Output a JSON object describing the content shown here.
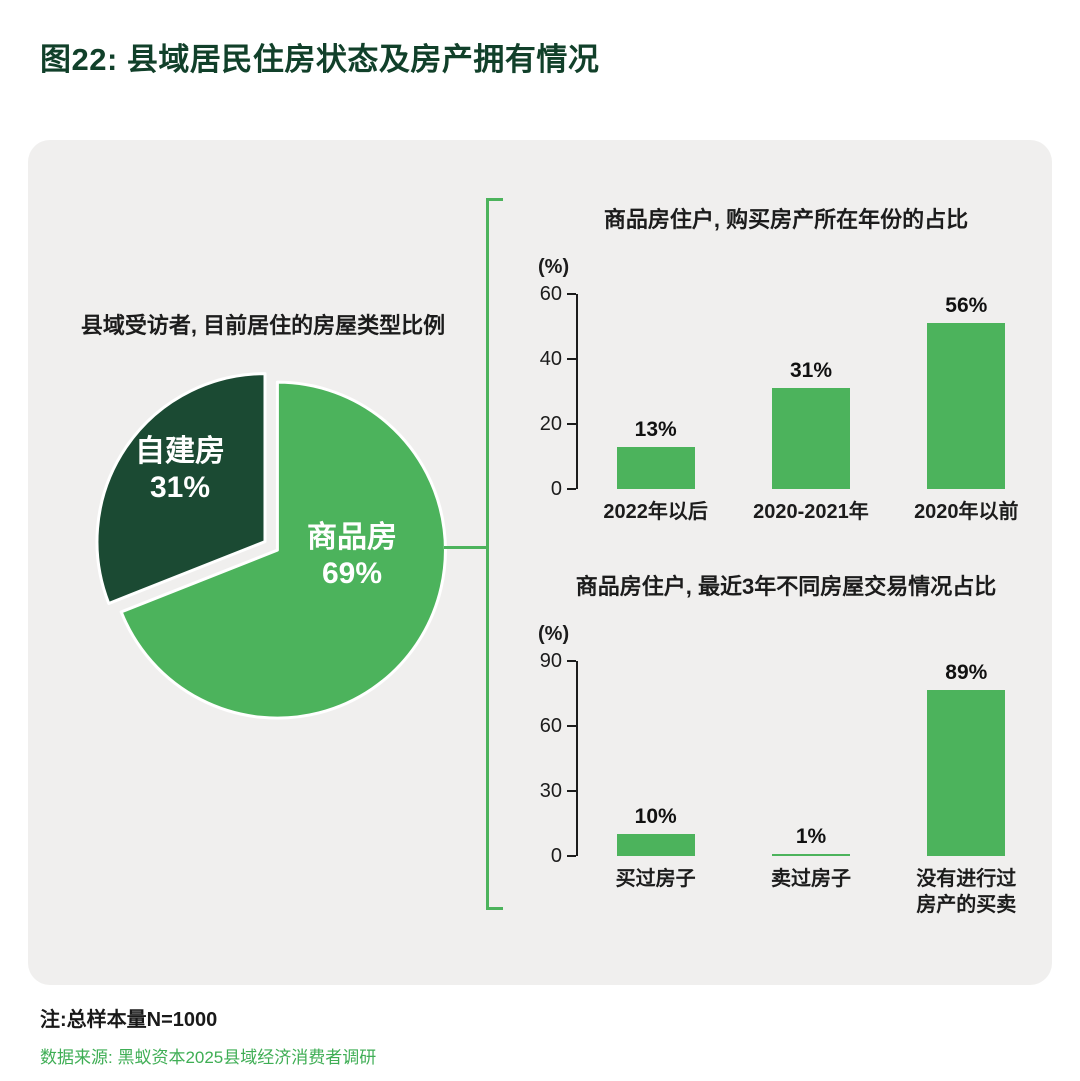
{
  "page": {
    "title": "图22: 县域居民住房状态及房产拥有情况",
    "note": "注:总样本量N=1000",
    "source": "数据来源: 黑蚁资本2025县域经济消费者调研"
  },
  "colors": {
    "title_green": "#11402a",
    "panel_bg": "#f0efee",
    "bar_green": "#4cb35c",
    "pie_dark_green": "#1b4a33",
    "pie_light_green": "#4cb35c",
    "bracket_green": "#4cb35c",
    "source_green": "#3fae55",
    "text_dark": "#1c1c1c"
  },
  "chart_data": [
    {
      "type": "pie",
      "title": "县域受访者, 目前居住的房屋类型比例",
      "slices": [
        {
          "label": "商品房",
          "pct_label": "69%",
          "value": 69,
          "color": "#4cb35c"
        },
        {
          "label": "自建房",
          "pct_label": "31%",
          "value": 31,
          "color": "#1b4a33"
        }
      ],
      "legend_position": "inside"
    },
    {
      "type": "bar",
      "title": "商品房住户, 购买房产所在年份的占比",
      "unit_label": "(%)",
      "categories": [
        "2022年以后",
        "2020-2021年",
        "2020年以前"
      ],
      "values": [
        13,
        31,
        56
      ],
      "value_labels": [
        "13%",
        "31%",
        "56%"
      ],
      "yticks": [
        0,
        20,
        40,
        60
      ],
      "ylim": [
        0,
        60
      ],
      "color": "#4cb35c",
      "grid": false
    },
    {
      "type": "bar",
      "title": "商品房住户, 最近3年不同房屋交易情况占比",
      "unit_label": "(%)",
      "categories": [
        "买过房子",
        "卖过房子",
        "没有进行过\n房产的买卖"
      ],
      "values": [
        10,
        1,
        89
      ],
      "value_labels": [
        "10%",
        "1%",
        "89%"
      ],
      "yticks": [
        0,
        30,
        60,
        90
      ],
      "ylim": [
        0,
        90
      ],
      "color": "#4cb35c",
      "grid": false
    }
  ]
}
